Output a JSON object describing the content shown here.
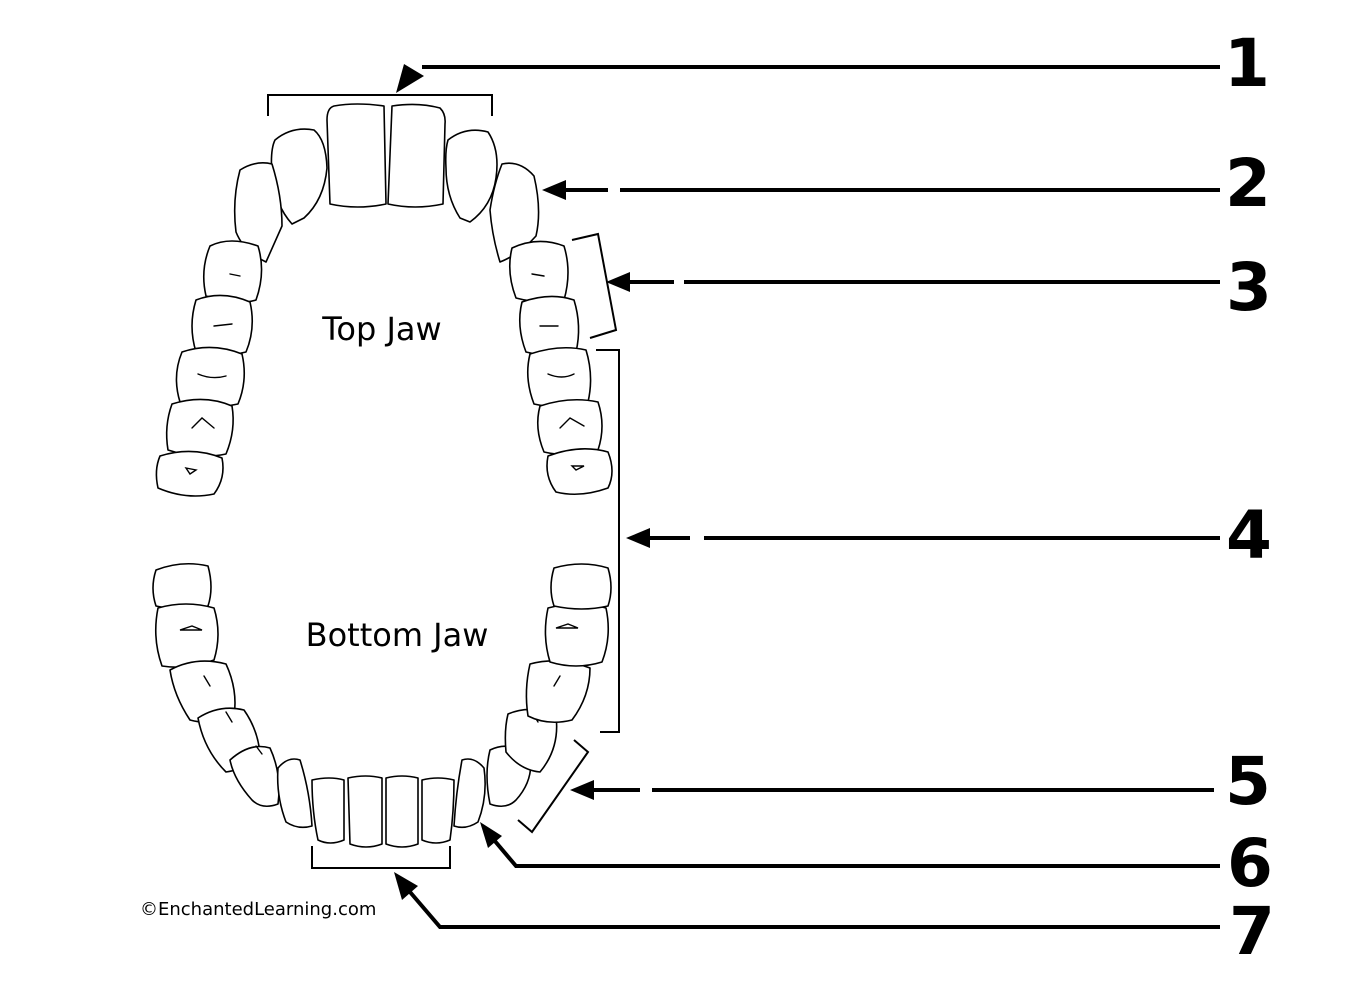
{
  "jaws": {
    "top": "Top Jaw",
    "bottom": "Bottom Jaw"
  },
  "labels": [
    "1",
    "2",
    "3",
    "4",
    "5",
    "6",
    "7"
  ],
  "credit": "©EnchantedLearning.com"
}
